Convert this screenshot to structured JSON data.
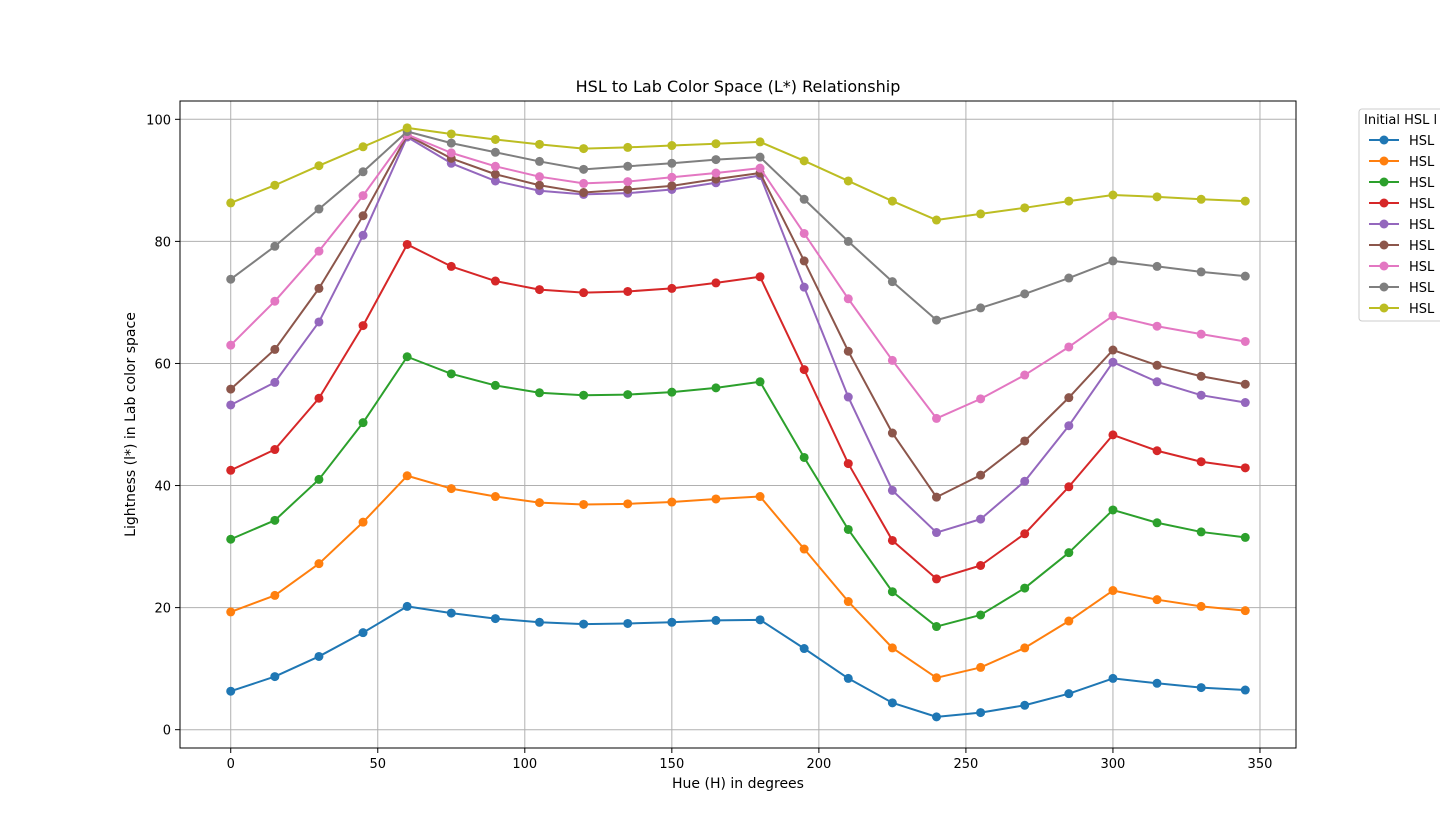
{
  "chart_data": {
    "type": "line",
    "title": "HSL to Lab Color Space (L*) Relationship",
    "xlabel": "Hue (H) in degrees",
    "ylabel": "Lightness (l*) in Lab color space",
    "xlim": [
      -17.25,
      362.25
    ],
    "ylim": [
      -3,
      103
    ],
    "xticks": [
      0,
      50,
      100,
      150,
      200,
      250,
      300,
      350
    ],
    "yticks": [
      0,
      20,
      40,
      60,
      80,
      100
    ],
    "grid": true,
    "legend": {
      "title": "Initial HSL l",
      "placement": "outside-right",
      "entries": [
        "HSL",
        "HSL",
        "HSL",
        "HSL",
        "HSL",
        "HSL",
        "HSL",
        "HSL",
        "HSL"
      ]
    },
    "x": [
      0,
      15,
      30,
      45,
      60,
      75,
      90,
      105,
      120,
      135,
      150,
      165,
      180,
      195,
      210,
      225,
      240,
      255,
      270,
      285,
      300,
      315,
      330,
      345
    ],
    "series": [
      {
        "color": "#1f77b4",
        "values": [
          6.3,
          8.7,
          12.0,
          15.9,
          20.2,
          19.1,
          18.2,
          17.6,
          17.3,
          17.4,
          17.6,
          17.9,
          18.0,
          13.3,
          8.4,
          4.4,
          2.1,
          2.8,
          4.0,
          5.9,
          8.4,
          7.6,
          6.9,
          6.5
        ]
      },
      {
        "color": "#ff7f0e",
        "values": [
          19.3,
          22.0,
          27.2,
          34.0,
          41.6,
          39.5,
          38.2,
          37.2,
          36.9,
          37.0,
          37.3,
          37.8,
          38.2,
          29.6,
          21.0,
          13.4,
          8.5,
          10.2,
          13.4,
          17.8,
          22.8,
          21.3,
          20.2,
          19.5
        ]
      },
      {
        "color": "#2ca02c",
        "values": [
          31.2,
          34.3,
          41.0,
          50.3,
          61.1,
          58.3,
          56.4,
          55.2,
          54.8,
          54.9,
          55.3,
          56.0,
          57.0,
          44.6,
          32.8,
          22.6,
          16.9,
          18.8,
          23.2,
          29.0,
          36.0,
          33.9,
          32.4,
          31.5
        ]
      },
      {
        "color": "#d62728",
        "values": [
          42.5,
          45.9,
          54.3,
          66.2,
          79.5,
          75.9,
          73.5,
          72.1,
          71.6,
          71.8,
          72.3,
          73.2,
          74.2,
          59.0,
          43.6,
          31.0,
          24.7,
          26.9,
          32.1,
          39.8,
          48.3,
          45.7,
          43.9,
          42.9
        ]
      },
      {
        "color": "#9467bd",
        "values": [
          53.2,
          56.9,
          66.8,
          81.0,
          97.1,
          92.8,
          89.9,
          88.3,
          87.7,
          87.9,
          88.5,
          89.6,
          90.8,
          72.5,
          54.5,
          39.2,
          32.3,
          34.5,
          40.7,
          49.8,
          60.2,
          57.0,
          54.8,
          53.6
        ]
      },
      {
        "color": "#8c564b",
        "values": [
          55.8,
          62.3,
          72.3,
          84.2,
          97.4,
          93.6,
          91.0,
          89.2,
          88.0,
          88.5,
          89.1,
          90.2,
          91.2,
          76.8,
          62.0,
          48.6,
          38.1,
          41.7,
          47.3,
          54.4,
          62.2,
          59.7,
          57.9,
          56.6
        ]
      },
      {
        "color": "#e377c2",
        "values": [
          63.0,
          70.2,
          78.4,
          87.5,
          97.5,
          94.5,
          92.3,
          90.6,
          89.5,
          89.8,
          90.5,
          91.2,
          92.0,
          81.3,
          70.6,
          60.5,
          51.0,
          54.2,
          58.1,
          62.7,
          67.8,
          66.1,
          64.8,
          63.6
        ]
      },
      {
        "color": "#7f7f7f",
        "values": [
          73.8,
          79.2,
          85.3,
          91.4,
          98.0,
          96.1,
          94.6,
          93.1,
          91.8,
          92.3,
          92.8,
          93.4,
          93.8,
          86.9,
          80.0,
          73.4,
          67.1,
          69.1,
          71.4,
          74.0,
          76.8,
          75.9,
          75.0,
          74.3
        ]
      },
      {
        "color": "#bcbd22",
        "values": [
          86.3,
          89.2,
          92.4,
          95.5,
          98.6,
          97.6,
          96.7,
          95.9,
          95.2,
          95.4,
          95.7,
          96.0,
          96.3,
          93.2,
          89.9,
          86.6,
          83.5,
          84.5,
          85.5,
          86.6,
          87.6,
          87.3,
          86.9,
          86.6
        ]
      }
    ]
  }
}
